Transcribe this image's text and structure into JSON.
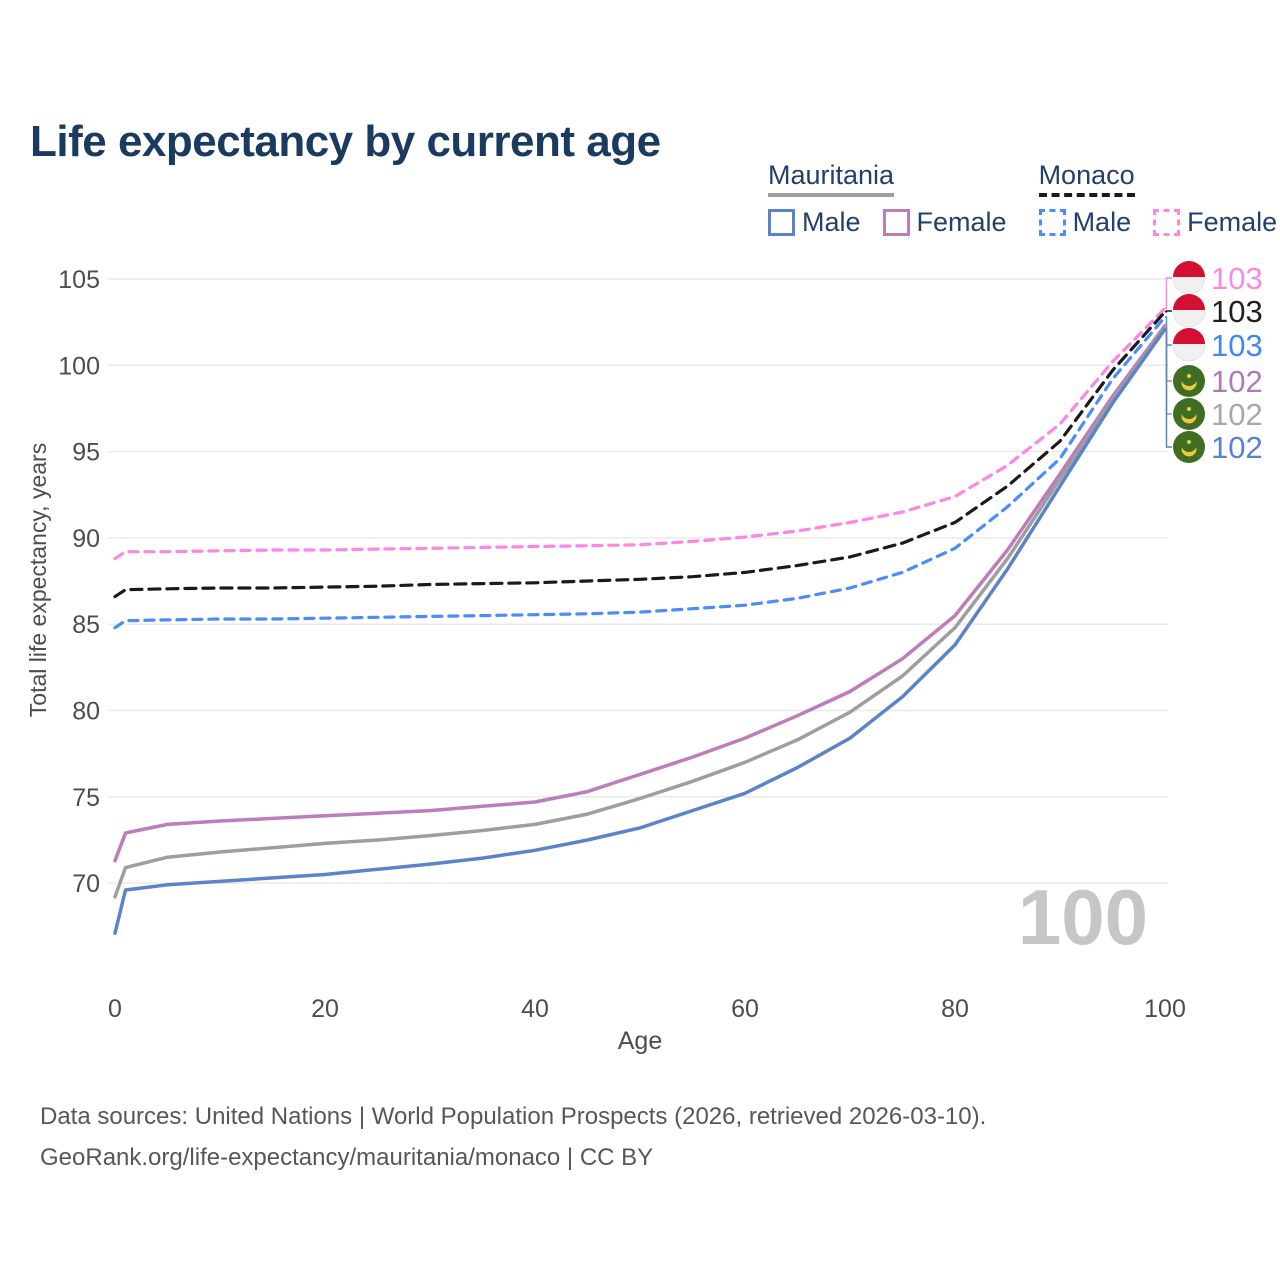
{
  "title": "Life expectancy by current age",
  "watermark": "100",
  "legend": {
    "groups": [
      {
        "label": "Mauritania",
        "line_style": "solid",
        "line_color": "#9e9e9e",
        "items": [
          {
            "label": "Male",
            "color": "#5b84c8",
            "dashed": false
          },
          {
            "label": "Female",
            "color": "#bd7cba",
            "dashed": false
          }
        ]
      },
      {
        "label": "Monaco",
        "line_style": "dashed",
        "line_color": "#1a1a1a",
        "items": [
          {
            "label": "Male",
            "color": "#4b8df8",
            "dashed": true
          },
          {
            "label": "Female",
            "color": "#fb86e3",
            "dashed": true
          }
        ]
      }
    ]
  },
  "chart_data": {
    "type": "line",
    "title": "Life expectancy by current age",
    "xlabel": "Age",
    "ylabel": "Total life expectancy, years",
    "xlim": [
      0,
      100
    ],
    "ylim": [
      66.5,
      105.5
    ],
    "xticks": [
      0,
      20,
      40,
      60,
      80,
      100
    ],
    "yticks": [
      70,
      75,
      80,
      85,
      90,
      95,
      100,
      105
    ],
    "grid": "horizontal",
    "legend_position": "top-right",
    "x": [
      0,
      1,
      5,
      10,
      15,
      20,
      25,
      30,
      35,
      40,
      45,
      50,
      55,
      60,
      65,
      70,
      75,
      80,
      85,
      90,
      95,
      100
    ],
    "series": [
      {
        "name": "Monaco Female",
        "country": "Monaco",
        "flag": "monaco",
        "color": "#fb86e3",
        "label_color": "#f98ae0",
        "dash": true,
        "end_label": "103",
        "values": [
          88.8,
          89.2,
          89.2,
          89.25,
          89.3,
          89.3,
          89.35,
          89.4,
          89.45,
          89.5,
          89.55,
          89.6,
          89.8,
          90.05,
          90.4,
          90.9,
          91.5,
          92.4,
          94.2,
          96.6,
          100.2,
          103.3
        ]
      },
      {
        "name": "Monaco Both sexes",
        "country": "Monaco",
        "flag": "monaco",
        "color": "#1a1a1a",
        "label_color": "#1f1f1f",
        "dash": true,
        "end_label": "103",
        "values": [
          86.6,
          87.0,
          87.05,
          87.1,
          87.1,
          87.15,
          87.2,
          87.3,
          87.35,
          87.4,
          87.5,
          87.6,
          87.75,
          88.0,
          88.4,
          88.9,
          89.7,
          90.9,
          93.0,
          95.6,
          99.7,
          103.1
        ]
      },
      {
        "name": "Monaco Male",
        "country": "Monaco",
        "flag": "monaco",
        "color": "#4b8df8",
        "label_color": "#3f88f5",
        "dash": true,
        "end_label": "103",
        "values": [
          84.8,
          85.2,
          85.25,
          85.3,
          85.3,
          85.35,
          85.4,
          85.45,
          85.5,
          85.55,
          85.6,
          85.7,
          85.9,
          86.1,
          86.5,
          87.1,
          88.0,
          89.4,
          91.8,
          94.6,
          99.2,
          102.8
        ]
      },
      {
        "name": "Mauritania Female",
        "country": "Mauritania",
        "flag": "mauritania",
        "color": "#bd7cba",
        "label_color": "#b279b2",
        "dash": false,
        "end_label": "102",
        "values": [
          71.3,
          72.9,
          73.4,
          73.6,
          73.75,
          73.9,
          74.05,
          74.2,
          74.45,
          74.7,
          75.3,
          76.3,
          77.3,
          78.4,
          79.7,
          81.1,
          83.0,
          85.5,
          89.3,
          93.7,
          98.2,
          102.3
        ]
      },
      {
        "name": "Mauritania Both sexes",
        "country": "Mauritania",
        "flag": "mauritania",
        "color": "#9e9e9e",
        "label_color": "#a8a8a8",
        "dash": false,
        "end_label": "102",
        "values": [
          69.2,
          70.9,
          71.5,
          71.8,
          72.05,
          72.3,
          72.5,
          72.75,
          73.05,
          73.4,
          74.0,
          74.9,
          75.9,
          77.0,
          78.3,
          79.9,
          82.0,
          84.8,
          88.8,
          93.4,
          98.0,
          102.2
        ]
      },
      {
        "name": "Mauritania Male",
        "country": "Mauritania",
        "flag": "mauritania",
        "color": "#5b84c8",
        "label_color": "#5585d0",
        "dash": false,
        "end_label": "102",
        "values": [
          67.1,
          69.6,
          69.9,
          70.1,
          70.3,
          70.5,
          70.8,
          71.1,
          71.45,
          71.9,
          72.5,
          73.2,
          74.2,
          75.2,
          76.7,
          78.4,
          80.8,
          83.8,
          88.2,
          93.0,
          97.8,
          102.1
        ]
      }
    ]
  },
  "flag_colors": {
    "monaco_red": "#d21034",
    "monaco_white": "#f0f0f0",
    "mauritania_green": "#3f6d22",
    "mauritania_gold": "#eec83d"
  },
  "footer": {
    "line1": "Data sources: United Nations | World Population Prospects (2026, retrieved 2026-03-10).",
    "line2": "GeoRank.org/life-expectancy/mauritania/monaco | CC BY"
  }
}
